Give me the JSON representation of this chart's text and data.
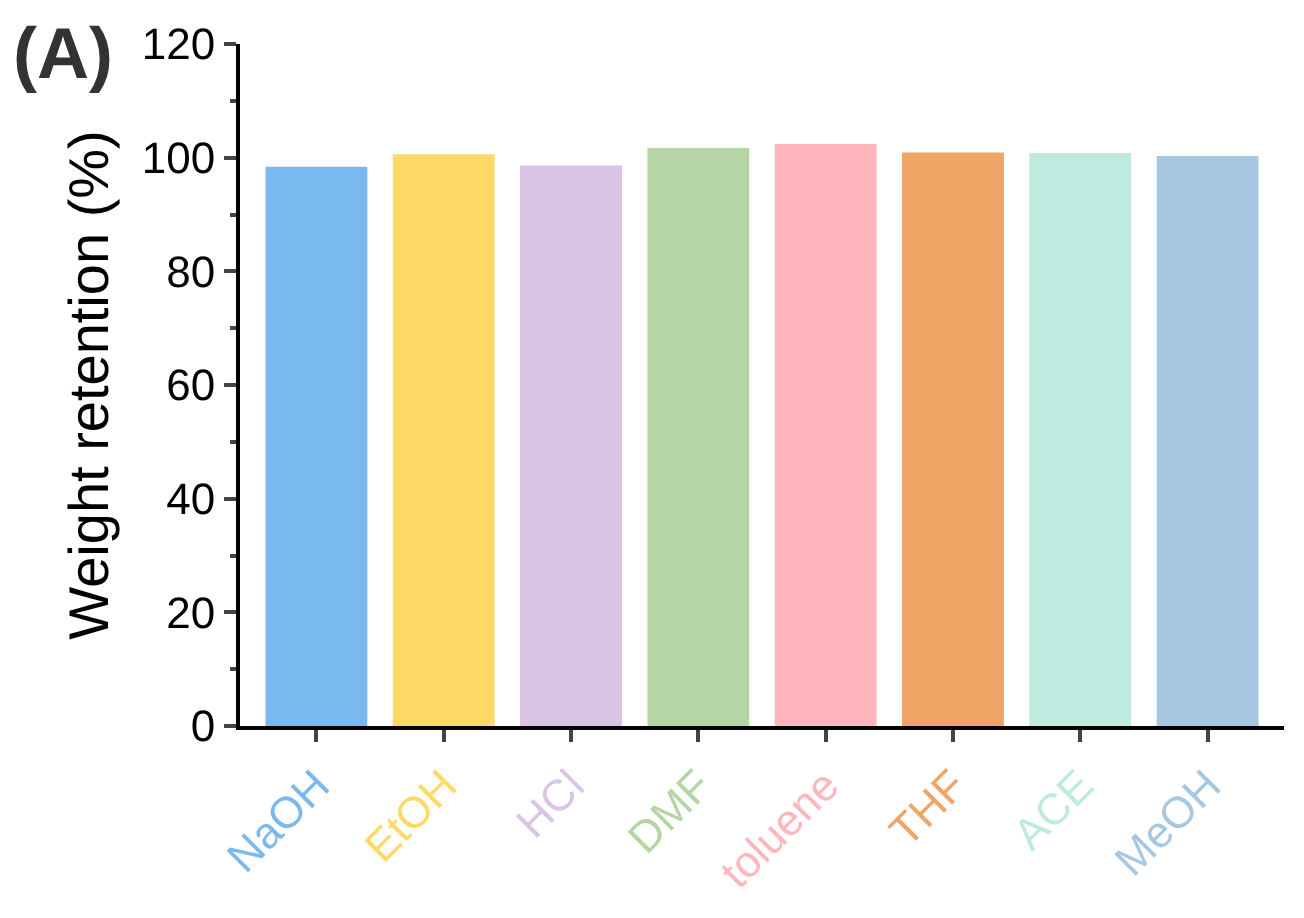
{
  "chart_data": {
    "type": "bar",
    "title": "(A)",
    "ylabel": "Weight retention (%)",
    "categories": [
      "NaOH",
      "EtOH",
      "HCl",
      "DMF",
      "toluene",
      "THF",
      "ACE",
      "MeOH"
    ],
    "values": [
      98.4,
      100.6,
      98.6,
      101.7,
      102.4,
      100.9,
      100.8,
      100.3
    ],
    "colors": [
      "#7ab8f0",
      "#ffd966",
      "#d9c4e6",
      "#b5d6a4",
      "#ffb6bd",
      "#f0a466",
      "#bfeadf",
      "#a7c8e0"
    ],
    "ylim": [
      0,
      120
    ],
    "yticks": [
      0,
      20,
      40,
      60,
      80,
      100,
      120
    ]
  }
}
